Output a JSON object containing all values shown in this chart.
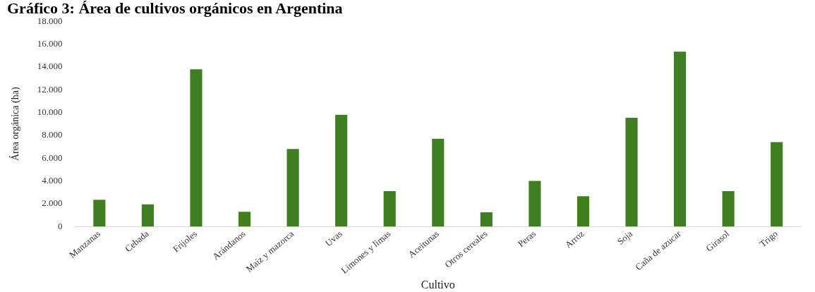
{
  "chart_data": {
    "type": "bar",
    "title": "Gráfico 3: Área de cultivos orgánicos en Argentina",
    "xlabel": "Cultivo",
    "ylabel": "Área orgánica (ha)",
    "categories": [
      "Manzanas",
      "Cebada",
      "Frijoles",
      "Arándanos",
      "Maíz y mazorca",
      "Uvas",
      "Limones y limas",
      "Aceitunas",
      "Otros cereales",
      "Peras",
      "Arroz",
      "Soja",
      "Caña de azucar",
      "Girasol",
      "Trigo"
    ],
    "values": [
      2350,
      1950,
      13800,
      1300,
      6800,
      9800,
      3100,
      7700,
      1250,
      4000,
      2650,
      9550,
      15350,
      3100,
      7400
    ],
    "color": "#3f7f22",
    "ylim": [
      0,
      18000
    ],
    "yticks": [
      {
        "value": 0,
        "label": "0"
      },
      {
        "value": 2000,
        "label": "2.000"
      },
      {
        "value": 4000,
        "label": "4.000"
      },
      {
        "value": 6000,
        "label": "6.000"
      },
      {
        "value": 8000,
        "label": "8.000"
      },
      {
        "value": 10000,
        "label": "10.000"
      },
      {
        "value": 12000,
        "label": "12.000"
      },
      {
        "value": 14000,
        "label": "14.000"
      },
      {
        "value": 16000,
        "label": "16.000"
      },
      {
        "value": 18000,
        "label": "18.000"
      }
    ],
    "grid": false,
    "legend": false
  }
}
